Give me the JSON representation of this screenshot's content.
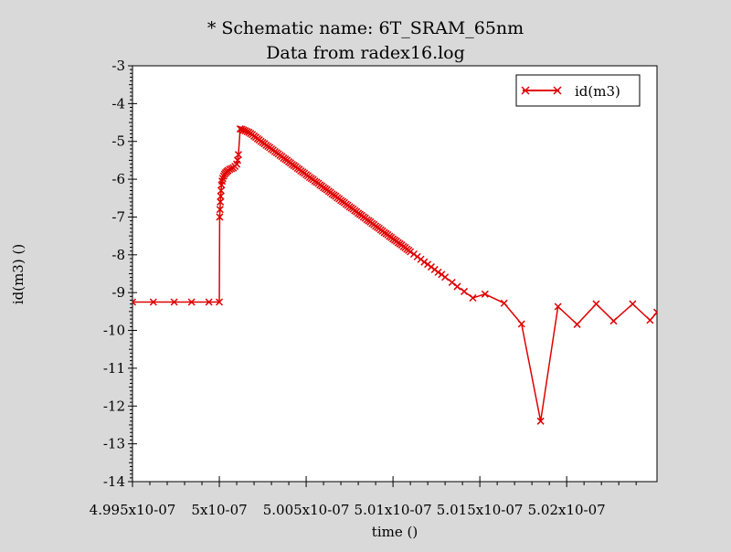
{
  "chart_data": {
    "type": "line",
    "title": "* Schematic name: 6T_SRAM_65nm",
    "subtitle": "Data from radex16.log",
    "xlabel": "time ()",
    "ylabel": "id(m3) ()",
    "xlim": [
      4.995e-07,
      5.0252e-07
    ],
    "ylim": [
      -14,
      -3
    ],
    "x_ticks": [
      4.995e-07,
      5e-07,
      5.005e-07,
      5.01e-07,
      5.015e-07,
      5.02e-07
    ],
    "x_tick_labels": [
      "4.995x10-07",
      "5x10-07",
      "5.005x10-07",
      "5.01x10-07",
      "5.015x10-07",
      "5.02x10-07"
    ],
    "y_ticks": [
      -3,
      -4,
      -5,
      -6,
      -7,
      -8,
      -9,
      -10,
      -11,
      -12,
      -13,
      -14
    ],
    "y_tick_labels": [
      "-3",
      "-4",
      "-5",
      "-6",
      "-7",
      "-8",
      "-9",
      "-10",
      "-11",
      "-12",
      "-13",
      "-14"
    ],
    "grid": false,
    "legend_position": "top-right",
    "colors": {
      "series": "#e00000",
      "plot_bg": "#ffffff",
      "page_bg": "#d9d9d9"
    },
    "series": [
      {
        "name": "id(m3)",
        "marker": "x",
        "x": [
          4.995e-07,
          4.9962e-07,
          4.9974e-07,
          4.9984e-07,
          4.9994e-07,
          5e-07,
          5.00002e-07,
          5.00004e-07,
          5.00006e-07,
          5.00008e-07,
          5.0001e-07,
          5.00013e-07,
          5.00016e-07,
          5.0002e-07,
          5.00025e-07,
          5.0003e-07,
          5.00036e-07,
          5.00043e-07,
          5.0005e-07,
          5.0006e-07,
          5.0007e-07,
          5.0008e-07,
          5.0009e-07,
          5.001e-07,
          5.00105e-07,
          5.0011e-07,
          5.0012e-07,
          5.0013e-07,
          5.0014e-07,
          5.0015e-07,
          5.0016e-07,
          5.0017e-07,
          5.0018e-07,
          5.0019e-07,
          5.002e-07,
          5.0021e-07,
          5.0022e-07,
          5.0023e-07,
          5.0024e-07,
          5.0025e-07,
          5.0026e-07,
          5.0027e-07,
          5.0028e-07,
          5.0029e-07,
          5.003e-07,
          5.0031e-07,
          5.0032e-07,
          5.0033e-07,
          5.0034e-07,
          5.0035e-07,
          5.0036e-07,
          5.0037e-07,
          5.0038e-07,
          5.0039e-07,
          5.004e-07,
          5.0041e-07,
          5.0042e-07,
          5.0043e-07,
          5.0044e-07,
          5.0045e-07,
          5.0046e-07,
          5.0047e-07,
          5.0048e-07,
          5.0049e-07,
          5.005e-07,
          5.0051e-07,
          5.0052e-07,
          5.0053e-07,
          5.0054e-07,
          5.0055e-07,
          5.0056e-07,
          5.0057e-07,
          5.0058e-07,
          5.0059e-07,
          5.006e-07,
          5.0061e-07,
          5.0062e-07,
          5.0063e-07,
          5.0064e-07,
          5.0065e-07,
          5.0066e-07,
          5.0067e-07,
          5.0068e-07,
          5.0069e-07,
          5.007e-07,
          5.0071e-07,
          5.0072e-07,
          5.0073e-07,
          5.0074e-07,
          5.0075e-07,
          5.0076e-07,
          5.0077e-07,
          5.0078e-07,
          5.0079e-07,
          5.008e-07,
          5.0081e-07,
          5.0082e-07,
          5.0083e-07,
          5.0084e-07,
          5.0085e-07,
          5.0086e-07,
          5.0087e-07,
          5.0088e-07,
          5.0089e-07,
          5.009e-07,
          5.0091e-07,
          5.0092e-07,
          5.0093e-07,
          5.0094e-07,
          5.0095e-07,
          5.0096e-07,
          5.0097e-07,
          5.0098e-07,
          5.0099e-07,
          5.01e-07,
          5.0101e-07,
          5.0102e-07,
          5.0103e-07,
          5.0104e-07,
          5.0105e-07,
          5.0106e-07,
          5.0107e-07,
          5.0108e-07,
          5.0109e-07,
          5.011e-07,
          5.0112e-07,
          5.0114e-07,
          5.0116e-07,
          5.0118e-07,
          5.012e-07,
          5.0122e-07,
          5.0124e-07,
          5.0126e-07,
          5.0128e-07,
          5.013e-07,
          5.0134e-07,
          5.0137e-07,
          5.0141e-07,
          5.0146e-07,
          5.0153e-07,
          5.0164e-07,
          5.0174e-07,
          5.0185e-07,
          5.0195e-07,
          5.0206e-07,
          5.0217e-07,
          5.0227e-07,
          5.0238e-07,
          5.0248e-07,
          5.0252e-07
        ],
        "y": [
          -9.25,
          -9.25,
          -9.25,
          -9.25,
          -9.25,
          -9.25,
          -7.0,
          -6.8,
          -6.6,
          -6.45,
          -6.3,
          -6.15,
          -6.05,
          -5.98,
          -5.92,
          -5.87,
          -5.83,
          -5.8,
          -5.77,
          -5.74,
          -5.72,
          -5.7,
          -5.66,
          -5.6,
          -5.5,
          -5.35,
          -4.67,
          -4.68,
          -4.7,
          -4.72,
          -4.74,
          -4.76,
          -4.79,
          -4.82,
          -4.86,
          -4.89,
          -4.93,
          -4.96,
          -5.0,
          -5.03,
          -5.06,
          -5.1,
          -5.13,
          -5.16,
          -5.2,
          -5.23,
          -5.27,
          -5.3,
          -5.33,
          -5.37,
          -5.4,
          -5.44,
          -5.47,
          -5.5,
          -5.54,
          -5.57,
          -5.61,
          -5.64,
          -5.67,
          -5.71,
          -5.74,
          -5.78,
          -5.81,
          -5.84,
          -5.88,
          -5.91,
          -5.95,
          -5.98,
          -6.01,
          -6.05,
          -6.08,
          -6.11,
          -6.15,
          -6.18,
          -6.22,
          -6.25,
          -6.28,
          -6.32,
          -6.35,
          -6.39,
          -6.42,
          -6.45,
          -6.49,
          -6.52,
          -6.56,
          -6.59,
          -6.62,
          -6.66,
          -6.69,
          -6.73,
          -6.76,
          -6.79,
          -6.83,
          -6.86,
          -6.9,
          -6.93,
          -6.96,
          -7.0,
          -7.03,
          -7.07,
          -7.1,
          -7.13,
          -7.17,
          -7.2,
          -7.24,
          -7.27,
          -7.3,
          -7.34,
          -7.37,
          -7.41,
          -7.44,
          -7.47,
          -7.51,
          -7.54,
          -7.58,
          -7.61,
          -7.64,
          -7.68,
          -7.71,
          -7.74,
          -7.78,
          -7.81,
          -7.85,
          -7.88,
          -7.92,
          -7.98,
          -8.05,
          -8.12,
          -8.19,
          -8.25,
          -8.32,
          -8.39,
          -8.46,
          -8.52,
          -8.59,
          -8.73,
          -8.84,
          -8.97,
          -9.14,
          -9.04,
          -9.28,
          -9.83,
          -12.4,
          -9.37,
          -9.84,
          -9.3,
          -9.75,
          -9.3,
          -9.73,
          -9.52
        ]
      }
    ]
  }
}
